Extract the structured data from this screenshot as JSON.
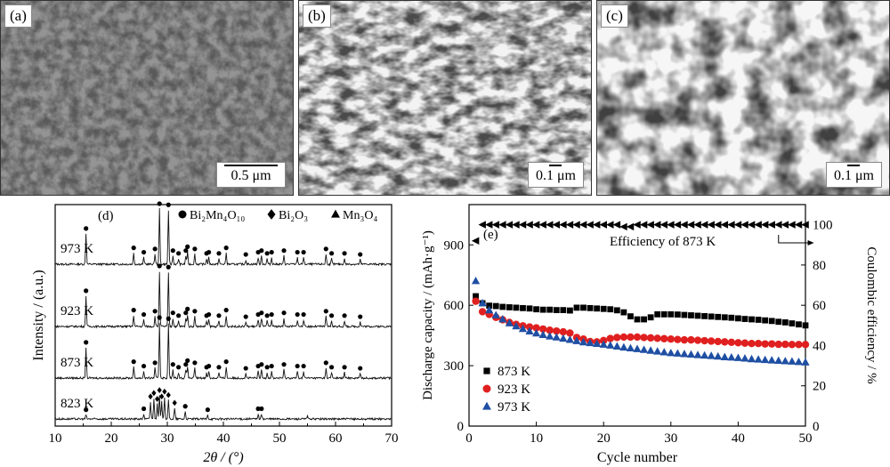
{
  "sem": [
    {
      "panel_label": "(a)",
      "scale_label": "0.5 μm"
    },
    {
      "panel_label": "(b)",
      "scale_label": "0.1 μm"
    },
    {
      "panel_label": "(c)",
      "scale_label": "0.1 μm"
    }
  ],
  "chart_data": [
    {
      "type": "line",
      "panel_label": "(d)",
      "xlabel": "2θ / (°)",
      "ylabel": "Intensity / (a.u.)",
      "xlim": [
        10,
        70
      ],
      "x_ticks": [
        10,
        20,
        30,
        40,
        50,
        60,
        70
      ],
      "legend": [
        {
          "marker": "circle",
          "label": "Bi₂Mn₄O₁₀"
        },
        {
          "marker": "diamond",
          "label": "Bi₂O₃"
        },
        {
          "marker": "triangle",
          "label": "Mn₃O₄"
        }
      ],
      "series": [
        {
          "name": "973 K",
          "peaks": [
            [
              15.5,
              0.55
            ],
            [
              24.0,
              0.2
            ],
            [
              25.8,
              0.12
            ],
            [
              27.8,
              0.18
            ],
            [
              28.6,
              1.0
            ],
            [
              30.2,
              0.98
            ],
            [
              31.0,
              0.15
            ],
            [
              32.0,
              0.1
            ],
            [
              33.3,
              0.15
            ],
            [
              33.6,
              0.22
            ],
            [
              34.9,
              0.18
            ],
            [
              37.0,
              0.1
            ],
            [
              37.4,
              0.12
            ],
            [
              39.2,
              0.1
            ],
            [
              40.5,
              0.2
            ],
            [
              44.0,
              0.08
            ],
            [
              46.2,
              0.12
            ],
            [
              46.8,
              0.15
            ],
            [
              47.8,
              0.1
            ],
            [
              48.6,
              0.12
            ],
            [
              50.8,
              0.15
            ],
            [
              53.2,
              0.12
            ],
            [
              54.3,
              0.12
            ],
            [
              58.3,
              0.18
            ],
            [
              59.3,
              0.1
            ],
            [
              61.6,
              0.1
            ],
            [
              64.4,
              0.08
            ]
          ]
        },
        {
          "name": "923 K",
          "peaks": [
            [
              15.5,
              0.55
            ],
            [
              24.0,
              0.2
            ],
            [
              25.8,
              0.12
            ],
            [
              27.8,
              0.18
            ],
            [
              28.6,
              1.0
            ],
            [
              30.2,
              0.98
            ],
            [
              31.0,
              0.15
            ],
            [
              32.0,
              0.1
            ],
            [
              33.3,
              0.15
            ],
            [
              33.6,
              0.22
            ],
            [
              34.9,
              0.18
            ],
            [
              37.0,
              0.1
            ],
            [
              37.4,
              0.12
            ],
            [
              39.2,
              0.1
            ],
            [
              40.5,
              0.2
            ],
            [
              44.0,
              0.08
            ],
            [
              46.2,
              0.12
            ],
            [
              46.8,
              0.15
            ],
            [
              47.8,
              0.1
            ],
            [
              48.6,
              0.12
            ],
            [
              50.8,
              0.15
            ],
            [
              53.2,
              0.12
            ],
            [
              54.3,
              0.12
            ],
            [
              58.3,
              0.18
            ],
            [
              59.3,
              0.1
            ],
            [
              61.6,
              0.1
            ],
            [
              64.4,
              0.08
            ]
          ]
        },
        {
          "name": "873 K",
          "peaks": [
            [
              15.5,
              0.55
            ],
            [
              24.0,
              0.2
            ],
            [
              25.8,
              0.12
            ],
            [
              27.8,
              0.18
            ],
            [
              28.6,
              1.0
            ],
            [
              30.2,
              0.98
            ],
            [
              31.0,
              0.15
            ],
            [
              32.0,
              0.1
            ],
            [
              33.3,
              0.15
            ],
            [
              33.6,
              0.22
            ],
            [
              34.9,
              0.18
            ],
            [
              37.0,
              0.1
            ],
            [
              37.4,
              0.12
            ],
            [
              39.2,
              0.1
            ],
            [
              40.5,
              0.2
            ],
            [
              44.0,
              0.08
            ],
            [
              46.2,
              0.12
            ],
            [
              46.8,
              0.15
            ],
            [
              47.8,
              0.1
            ],
            [
              48.6,
              0.12
            ],
            [
              50.8,
              0.15
            ],
            [
              53.2,
              0.12
            ],
            [
              54.3,
              0.12
            ],
            [
              58.3,
              0.18
            ],
            [
              59.3,
              0.1
            ],
            [
              61.6,
              0.1
            ],
            [
              64.4,
              0.08
            ]
          ]
        },
        {
          "name": "823 K",
          "peaks": [
            [
              15.5,
              0.08
            ],
            [
              25.8,
              0.1
            ],
            [
              27.0,
              0.35
            ],
            [
              27.6,
              0.42
            ],
            [
              28.2,
              0.3
            ],
            [
              28.6,
              0.48
            ],
            [
              29.0,
              0.35
            ],
            [
              29.5,
              0.45
            ],
            [
              30.2,
              0.38
            ],
            [
              31.3,
              0.22
            ],
            [
              33.2,
              0.15
            ],
            [
              37.2,
              0.08
            ],
            [
              46.2,
              0.1
            ],
            [
              46.8,
              0.1
            ],
            [
              55.0,
              0.06
            ]
          ]
        }
      ]
    },
    {
      "type": "scatter",
      "panel_label": "(e)",
      "xlabel": "Cycle number",
      "ylabel": "Discharge capacity / (mAh·g⁻¹)",
      "y2label": "Coulombic efficiency / %",
      "xlim": [
        0,
        50
      ],
      "ylim": [
        0,
        1100
      ],
      "y2lim": [
        0,
        110
      ],
      "x_ticks": [
        0,
        10,
        20,
        30,
        40,
        50
      ],
      "y_ticks": [
        0,
        300,
        600,
        900
      ],
      "y2_ticks": [
        0,
        20,
        40,
        60,
        80,
        100
      ],
      "annotation": "Efficiency of 873 K",
      "legend_position": "bottom-left",
      "efficiency_873K": [
        92,
        100,
        100,
        100,
        100,
        100,
        100,
        100,
        100,
        100,
        100,
        100,
        100,
        100,
        100,
        100,
        100,
        100,
        100,
        100,
        100,
        100,
        99,
        99,
        100,
        100,
        100,
        100,
        100,
        100,
        100,
        100,
        100,
        100,
        100,
        100,
        100,
        100,
        100,
        100,
        100,
        100,
        100,
        100,
        100,
        100,
        100,
        100,
        100,
        100
      ],
      "series": [
        {
          "name": "873 K",
          "marker": "square",
          "color": "#000000",
          "x": [
            1,
            2,
            3,
            4,
            5,
            6,
            7,
            8,
            9,
            10,
            11,
            12,
            13,
            14,
            15,
            16,
            17,
            18,
            19,
            20,
            21,
            22,
            23,
            24,
            25,
            26,
            27,
            28,
            29,
            30,
            31,
            32,
            33,
            34,
            35,
            36,
            37,
            38,
            39,
            40,
            41,
            42,
            43,
            44,
            45,
            46,
            47,
            48,
            49,
            50
          ],
          "values": [
            645,
            610,
            598,
            596,
            592,
            590,
            588,
            586,
            584,
            580,
            578,
            578,
            576,
            576,
            574,
            588,
            588,
            586,
            584,
            582,
            580,
            575,
            565,
            545,
            530,
            530,
            540,
            555,
            555,
            555,
            554,
            552,
            550,
            548,
            546,
            544,
            542,
            540,
            538,
            535,
            532,
            530,
            528,
            525,
            522,
            518,
            515,
            510,
            505,
            500
          ]
        },
        {
          "name": "923 K",
          "marker": "circle",
          "color": "#e02020",
          "x": [
            1,
            2,
            3,
            4,
            5,
            6,
            7,
            8,
            9,
            10,
            11,
            12,
            13,
            14,
            15,
            16,
            17,
            18,
            19,
            20,
            21,
            22,
            23,
            24,
            25,
            26,
            27,
            28,
            29,
            30,
            31,
            32,
            33,
            34,
            35,
            36,
            37,
            38,
            39,
            40,
            41,
            42,
            43,
            44,
            45,
            46,
            47,
            48,
            49,
            50
          ],
          "values": [
            620,
            568,
            555,
            540,
            528,
            515,
            505,
            498,
            492,
            488,
            482,
            476,
            472,
            468,
            462,
            440,
            432,
            420,
            418,
            425,
            435,
            440,
            442,
            442,
            442,
            440,
            438,
            436,
            434,
            432,
            430,
            428,
            428,
            426,
            424,
            422,
            420,
            418,
            416,
            414,
            412,
            410,
            410,
            408,
            408,
            406,
            406,
            405,
            405,
            405
          ]
        },
        {
          "name": "973 K",
          "marker": "triangle",
          "color": "#1f4fa3",
          "x": [
            1,
            2,
            3,
            4,
            5,
            6,
            7,
            8,
            9,
            10,
            11,
            12,
            13,
            14,
            15,
            16,
            17,
            18,
            19,
            20,
            21,
            22,
            23,
            24,
            25,
            26,
            27,
            28,
            29,
            30,
            31,
            32,
            33,
            34,
            35,
            36,
            37,
            38,
            39,
            40,
            41,
            42,
            43,
            44,
            45,
            46,
            47,
            48,
            49,
            50
          ],
          "values": [
            720,
            610,
            575,
            550,
            530,
            510,
            495,
            482,
            470,
            460,
            452,
            445,
            440,
            434,
            428,
            422,
            416,
            412,
            408,
            404,
            400,
            395,
            390,
            386,
            382,
            378,
            374,
            370,
            366,
            362,
            360,
            357,
            355,
            352,
            350,
            348,
            345,
            342,
            340,
            338,
            335,
            332,
            330,
            328,
            326,
            324,
            322,
            320,
            318,
            316
          ]
        }
      ]
    }
  ]
}
